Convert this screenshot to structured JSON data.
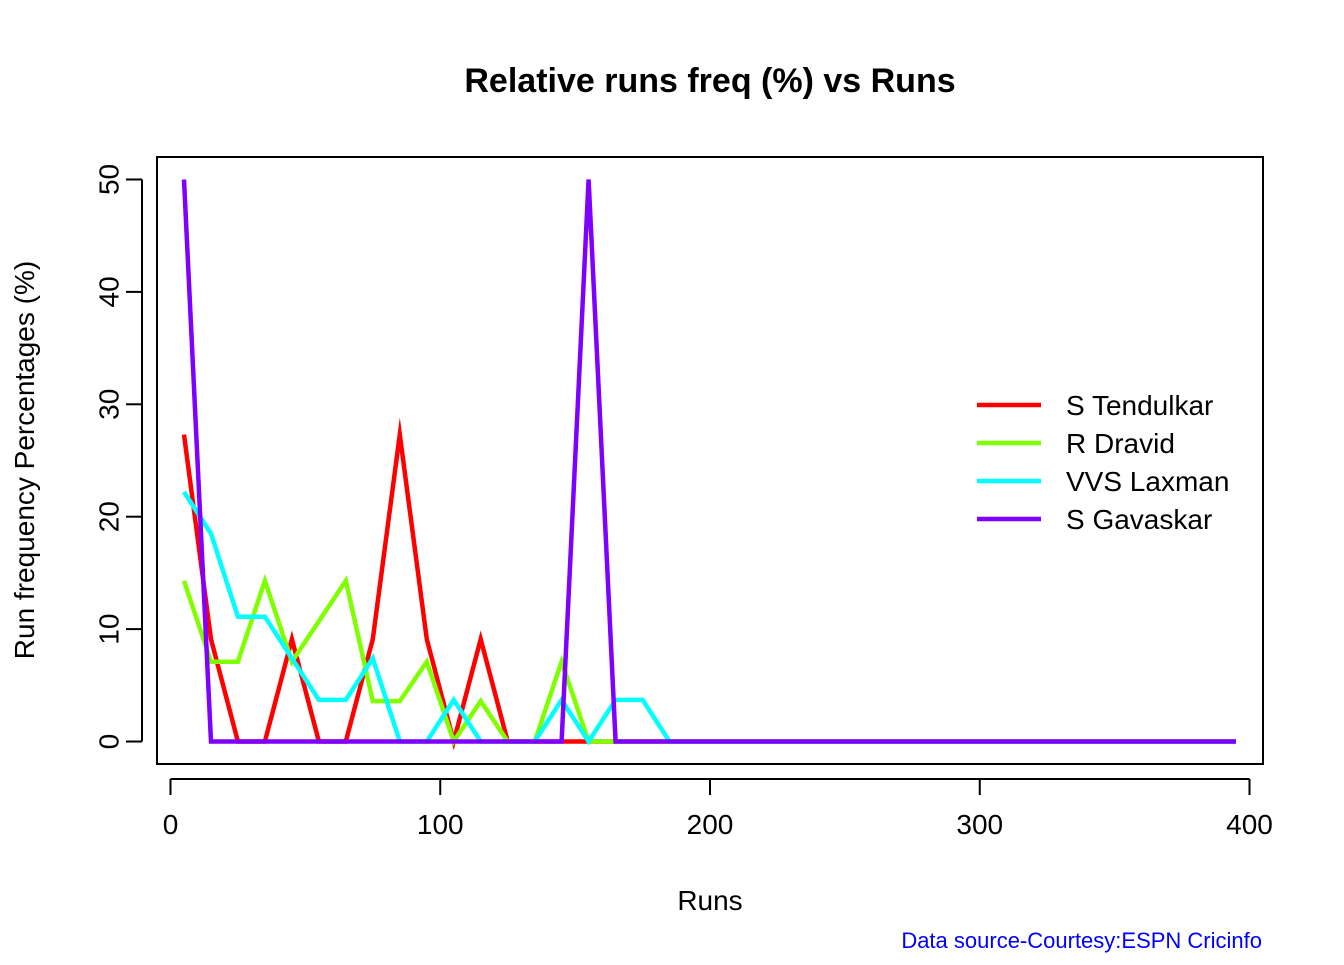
{
  "chart_data": {
    "type": "line",
    "title": "Relative runs freq (%) vs Runs",
    "xlabel": "Runs",
    "ylabel": "Run frequency Percentages (%)",
    "xlim": [
      -5,
      405
    ],
    "ylim": [
      -2,
      52
    ],
    "xticks": [
      0,
      100,
      200,
      300,
      400
    ],
    "yticks": [
      0,
      10,
      20,
      30,
      40,
      50
    ],
    "grid": false,
    "legend_position": "right",
    "x": [
      5,
      15,
      25,
      35,
      45,
      55,
      65,
      75,
      85,
      95,
      105,
      115,
      125,
      135,
      145,
      155,
      165,
      175,
      185,
      195,
      205,
      215,
      225,
      235,
      245,
      255,
      265,
      275,
      285,
      295,
      305,
      315,
      325,
      335,
      345,
      355,
      365,
      375,
      385,
      395
    ],
    "series": [
      {
        "name": "S Tendulkar",
        "color": "#ff0000",
        "values": [
          27.3,
          9.1,
          0,
          0,
          9.1,
          0,
          0,
          9.1,
          27.3,
          9.1,
          0,
          9.1,
          0,
          0,
          0,
          0,
          0,
          0,
          0,
          0,
          0,
          0,
          0,
          0,
          0,
          0,
          0,
          0,
          0,
          0,
          0,
          0,
          0,
          0,
          0,
          0,
          0,
          0,
          0,
          0
        ]
      },
      {
        "name": "R Dravid",
        "color": "#80ff00",
        "values": [
          14.3,
          7.1,
          7.1,
          14.3,
          7.1,
          10.7,
          14.3,
          3.6,
          3.6,
          7.1,
          0,
          3.6,
          0,
          0,
          7.1,
          0,
          0,
          0,
          0,
          0,
          0,
          0,
          0,
          0,
          0,
          0,
          0,
          0,
          0,
          0,
          0,
          0,
          0,
          0,
          0,
          0,
          0,
          0,
          0,
          0
        ]
      },
      {
        "name": "VVS Laxman",
        "color": "#00ffff",
        "values": [
          22.2,
          18.5,
          11.1,
          11.1,
          7.4,
          3.7,
          3.7,
          7.4,
          0,
          0,
          3.7,
          0,
          0,
          0,
          3.7,
          0,
          3.7,
          3.7,
          0,
          0,
          0,
          0,
          0,
          0,
          0,
          0,
          0,
          0,
          0,
          0,
          0,
          0,
          0,
          0,
          0,
          0,
          0,
          0,
          0,
          0
        ]
      },
      {
        "name": "S Gavaskar",
        "color": "#8000ff",
        "values": [
          50,
          0,
          0,
          0,
          0,
          0,
          0,
          0,
          0,
          0,
          0,
          0,
          0,
          0,
          0,
          50,
          0,
          0,
          0,
          0,
          0,
          0,
          0,
          0,
          0,
          0,
          0,
          0,
          0,
          0,
          0,
          0,
          0,
          0,
          0,
          0,
          0,
          0,
          0,
          0
        ]
      }
    ],
    "source_note": "Data source-Courtesy:ESPN Cricinfo",
    "source_note_color": "#0000ff"
  }
}
